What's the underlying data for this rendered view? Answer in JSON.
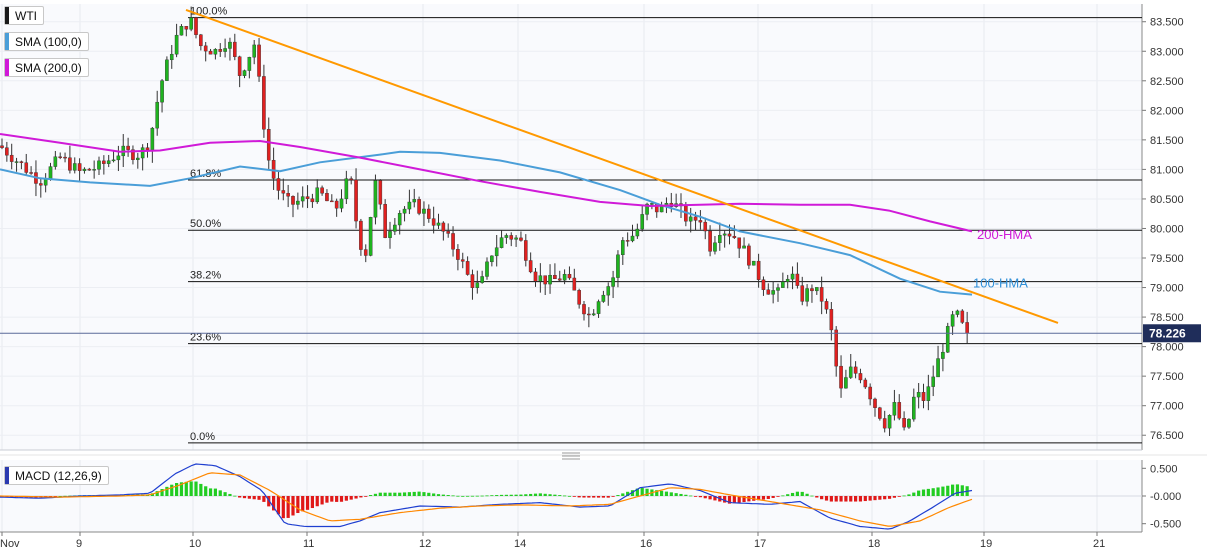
{
  "chart_data": {
    "type": "candlestick",
    "symbol": "WTI",
    "indicators": [
      {
        "name": "SMA (100,0)",
        "color": "#4a9ed8"
      },
      {
        "name": "SMA (200,0)",
        "color": "#d01ad8"
      }
    ],
    "x_ticks": [
      "Nov",
      "9",
      "10",
      "11",
      "12",
      "14",
      "16",
      "17",
      "18",
      "19",
      "21"
    ],
    "y_ticks": [
      "83.500",
      "83.000",
      "82.500",
      "82.000",
      "81.500",
      "81.000",
      "80.500",
      "80.000",
      "79.500",
      "79.000",
      "78.500",
      "78.000",
      "77.500",
      "77.000",
      "76.500"
    ],
    "ylim": [
      76.25,
      83.8
    ],
    "last_price": "78.226",
    "last_price_value": 78.226,
    "fibonacci": [
      {
        "label": "100.0%",
        "value": 83.57
      },
      {
        "label": "61.8%",
        "value": 80.82
      },
      {
        "label": "50.0%",
        "value": 79.97
      },
      {
        "label": "38.2%",
        "value": 79.1
      },
      {
        "label": "23.6%",
        "value": 78.05
      },
      {
        "label": "0.0%",
        "value": 76.37
      }
    ],
    "annotations": [
      {
        "text": "200-HMA",
        "color": "#d01ad8"
      },
      {
        "text": "100-HMA",
        "color": "#2f8fd8"
      }
    ],
    "macd": {
      "label": "MACD (12,26,9)",
      "y_ticks": [
        "0.500",
        "-0.000",
        "-0.500"
      ],
      "ylim": [
        -0.65,
        0.65
      ]
    },
    "colors": {
      "up": "#1fb31f",
      "down": "#e02020",
      "trendline": "#ff9900",
      "sma100": "#4a9ed8",
      "sma200": "#d01ad8",
      "macd_line": "#1f3fd0",
      "signal_line": "#ff8800"
    }
  }
}
